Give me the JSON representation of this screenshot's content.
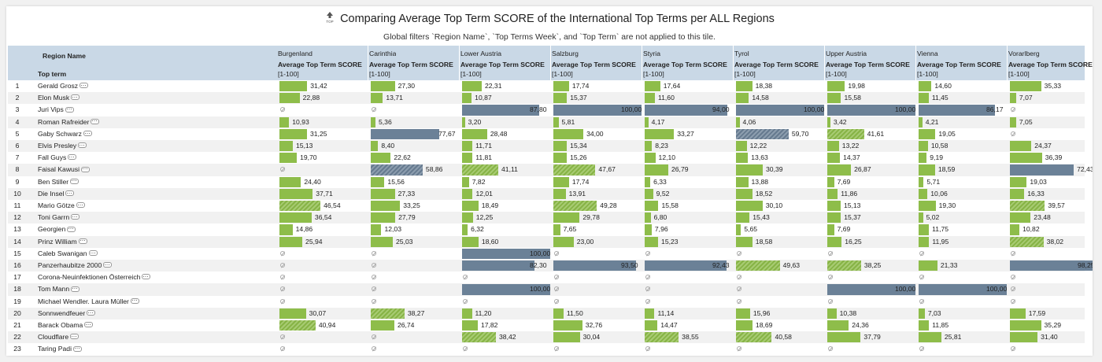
{
  "title": "Comparing Average Top Term SCORE of the International Top Terms per ALL Regions",
  "subtitle": "Global filters `Region Name`, `Top Terms Week`, and `Top Term` are not applied to this tile.",
  "title_icon": "top-trend-icon",
  "title_icon_label": "TOP",
  "header": {
    "region_label": "Region Name",
    "term_label": "Top term",
    "measure_label": "Average Top Term SCORE",
    "range_label": "[1-100]"
  },
  "regions": [
    "Burgenland",
    "Carinthia",
    "Lower Austria",
    "Salzburg",
    "Styria",
    "Tyrol",
    "Upper Austria",
    "Vienna",
    "Vorarlberg"
  ],
  "null_icon": "null-value-icon",
  "colors": {
    "bar": "#8ebd4a",
    "bar_high": "#6b8197",
    "header_bg": "#c9d8e6",
    "row_alt": "#f1f1f1"
  },
  "rows": [
    {
      "n": "1",
      "term": "Gerald Grosz",
      "v": [
        "31,42",
        "27,30",
        "22,31",
        "17,74",
        "17,64",
        "18,38",
        "19,98",
        "14,60",
        "35,33"
      ]
    },
    {
      "n": "2",
      "term": "Elon Musk",
      "v": [
        "22,88",
        "13,71",
        "10,87",
        "15,37",
        "11,60",
        "14,58",
        "15,58",
        "11,45",
        "7,07"
      ]
    },
    {
      "n": "3",
      "term": "Juri Vips",
      "v": [
        null,
        null,
        "87,80",
        "100,00",
        "94,00",
        "100,00",
        "100,00",
        "86,17",
        null
      ]
    },
    {
      "n": "4",
      "term": "Roman Rafreider",
      "v": [
        "10,93",
        "5,36",
        "3,20",
        "5,81",
        "4,17",
        "4,06",
        "3,42",
        "4,21",
        "7,05"
      ]
    },
    {
      "n": "5",
      "term": "Gaby Schwarz",
      "v": [
        "31,25",
        "77,67",
        "28,48",
        "34,00",
        "33,27",
        "59,70",
        "41,61",
        "19,05",
        null
      ]
    },
    {
      "n": "6",
      "term": "Elvis Presley",
      "v": [
        "15,13",
        "8,40",
        "11,71",
        "15,34",
        "8,23",
        "12,22",
        "13,22",
        "10,58",
        "24,37"
      ]
    },
    {
      "n": "7",
      "term": "Fall Guys",
      "v": [
        "19,70",
        "22,62",
        "11,81",
        "15,26",
        "12,10",
        "13,63",
        "14,37",
        "9,19",
        "36,39"
      ]
    },
    {
      "n": "8",
      "term": "Faisal Kawusi",
      "v": [
        null,
        "58,86",
        "41,11",
        "47,67",
        "26,79",
        "30,39",
        "26,87",
        "18,59",
        "72,43"
      ]
    },
    {
      "n": "9",
      "term": "Ben Stiller",
      "v": [
        "24,40",
        "15,56",
        "7,82",
        "17,74",
        "6,33",
        "13,88",
        "7,69",
        "5,71",
        "19,03"
      ]
    },
    {
      "n": "10",
      "term": "Die Insel",
      "v": [
        "37,71",
        "27,33",
        "12,01",
        "13,91",
        "9,52",
        "18,52",
        "11,86",
        "10,06",
        "16,33"
      ]
    },
    {
      "n": "11",
      "term": "Mario Götze",
      "v": [
        "46,54",
        "33,25",
        "18,49",
        "49,28",
        "15,58",
        "30,10",
        "15,13",
        "19,30",
        "39,57"
      ]
    },
    {
      "n": "12",
      "term": "Toni Garrn",
      "v": [
        "36,54",
        "27,79",
        "12,25",
        "29,78",
        "6,80",
        "15,43",
        "15,37",
        "5,02",
        "23,48"
      ]
    },
    {
      "n": "13",
      "term": "Georgien",
      "v": [
        "14,86",
        "12,03",
        "6,32",
        "7,65",
        "7,96",
        "5,65",
        "7,69",
        "11,75",
        "10,82"
      ]
    },
    {
      "n": "14",
      "term": "Prinz William",
      "v": [
        "25,94",
        "25,03",
        "18,60",
        "23,00",
        "15,23",
        "18,58",
        "16,25",
        "11,95",
        "38,02"
      ]
    },
    {
      "n": "15",
      "term": "Caleb Swanigan",
      "v": [
        null,
        null,
        "100,00",
        null,
        null,
        null,
        null,
        null,
        null
      ]
    },
    {
      "n": "16",
      "term": "Panzerhaubitze 2000",
      "v": [
        null,
        null,
        "82,30",
        "93,50",
        "92,43",
        "49,63",
        "38,25",
        "21,33",
        "98,25"
      ]
    },
    {
      "n": "17",
      "term": "Corona-Neuinfektionen Österreich",
      "v": [
        null,
        null,
        null,
        null,
        null,
        null,
        null,
        null,
        null
      ]
    },
    {
      "n": "18",
      "term": "Tom Mann",
      "v": [
        null,
        null,
        "100,00",
        null,
        null,
        null,
        "100,00",
        "100,00",
        null
      ]
    },
    {
      "n": "19",
      "term": "Michael Wendler. Laura Müller",
      "v": [
        null,
        null,
        null,
        null,
        null,
        null,
        null,
        null,
        null
      ]
    },
    {
      "n": "20",
      "term": "Sonnwendfeuer",
      "v": [
        "30,07",
        "38,27",
        "11,20",
        "11,50",
        "11,14",
        "15,96",
        "10,38",
        "7,03",
        "17,59"
      ]
    },
    {
      "n": "21",
      "term": "Barack Obama",
      "v": [
        "40,94",
        "26,74",
        "17,82",
        "32,76",
        "14,47",
        "18,69",
        "24,36",
        "11,85",
        "35,29"
      ]
    },
    {
      "n": "22",
      "term": "Cloudflare",
      "v": [
        null,
        null,
        "38,42",
        "30,04",
        "38,55",
        "40,58",
        "37,79",
        "25,81",
        "31,40"
      ]
    },
    {
      "n": "23",
      "term": "Taring Padi",
      "v": [
        null,
        null,
        null,
        null,
        null,
        null,
        null,
        null,
        null
      ]
    }
  ]
}
